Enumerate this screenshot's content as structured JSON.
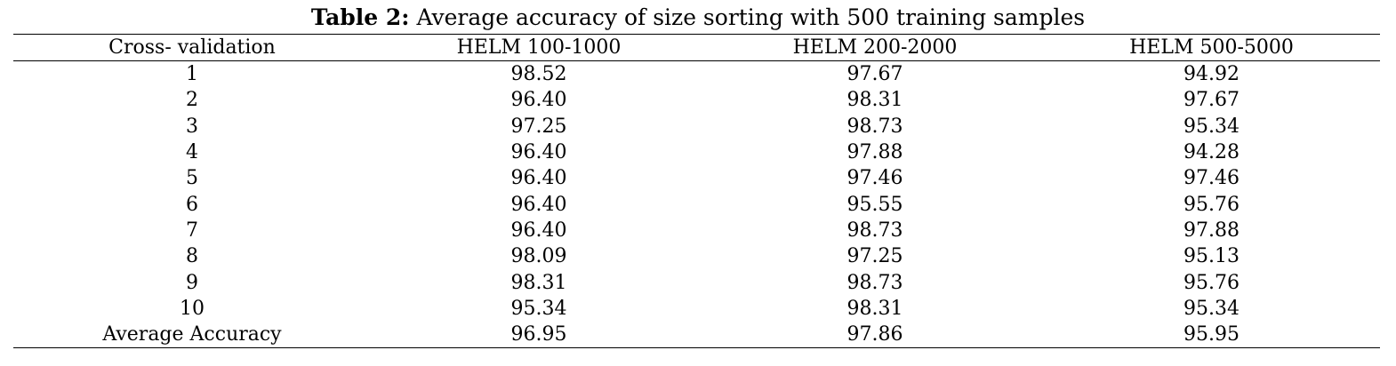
{
  "caption": {
    "label": "Table 2:",
    "text": " Average accuracy of size sorting with 500 training samples"
  },
  "table": {
    "headers": [
      "Cross- validation",
      "HELM 100-1000",
      "HELM 200-2000",
      "HELM 500-5000"
    ],
    "rows": [
      [
        "1",
        "98.52",
        "97.67",
        "94.92"
      ],
      [
        "2",
        "96.40",
        "98.31",
        "97.67"
      ],
      [
        "3",
        "97.25",
        "98.73",
        "95.34"
      ],
      [
        "4",
        "96.40",
        "97.88",
        "94.28"
      ],
      [
        "5",
        "96.40",
        "97.46",
        "97.46"
      ],
      [
        "6",
        "96.40",
        "95.55",
        "95.76"
      ],
      [
        "7",
        "96.40",
        "98.73",
        "97.88"
      ],
      [
        "8",
        "98.09",
        "97.25",
        "95.13"
      ],
      [
        "9",
        "98.31",
        "98.73",
        "95.76"
      ],
      [
        "10",
        "95.34",
        "98.31",
        "95.34"
      ],
      [
        "Average Accuracy",
        "96.95",
        "97.86",
        "95.95"
      ]
    ]
  }
}
